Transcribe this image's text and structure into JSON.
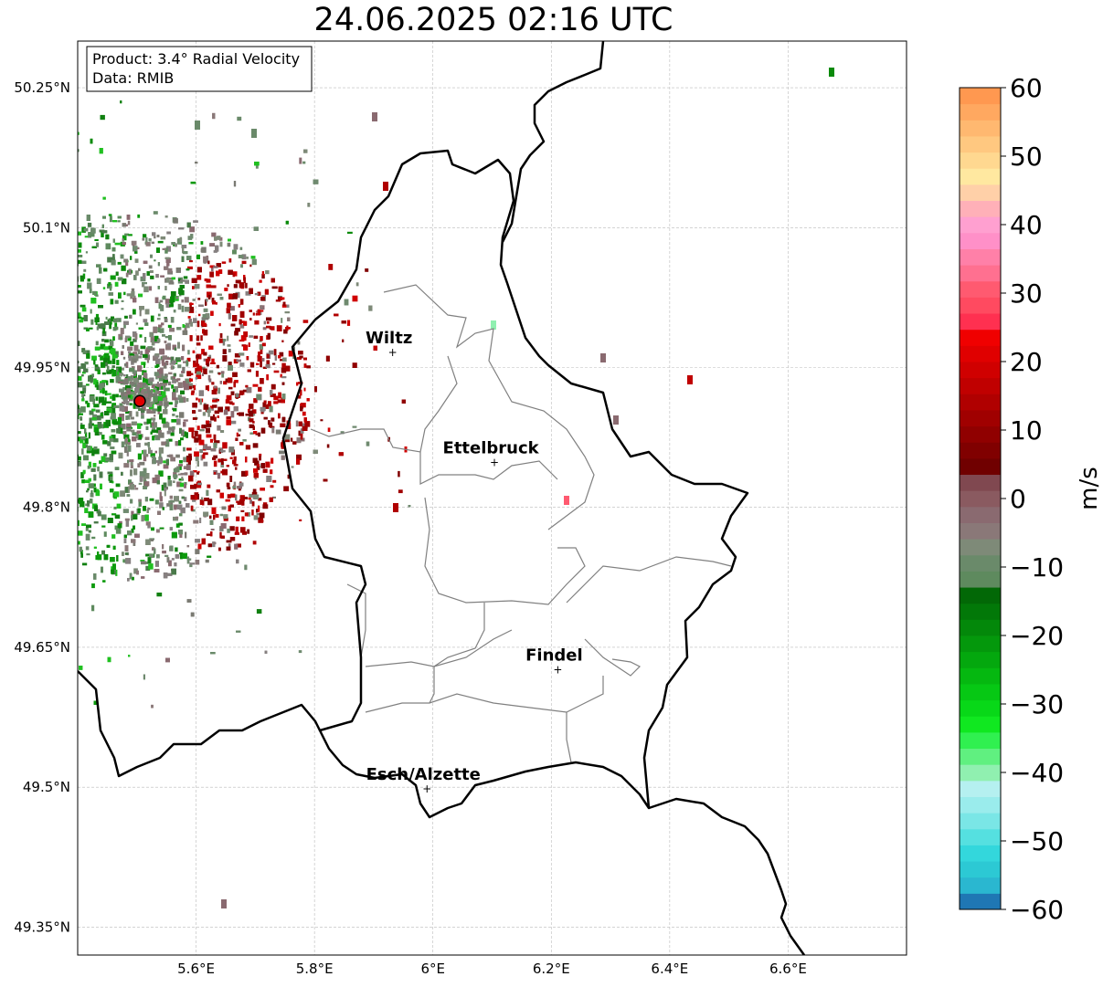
{
  "title": "24.06.2025 02:16 UTC",
  "info_box": {
    "product": "Product: 3.4° Radial Velocity",
    "data": "Data: RMIB"
  },
  "map": {
    "lon_range": [
      5.4,
      6.8
    ],
    "lat_range": [
      49.32,
      50.3
    ],
    "lat_ticks": [
      {
        "value": 50.25,
        "label": "50.25°N"
      },
      {
        "value": 50.1,
        "label": "50.1°N"
      },
      {
        "value": 49.95,
        "label": "49.95°N"
      },
      {
        "value": 49.8,
        "label": "49.8°N"
      },
      {
        "value": 49.65,
        "label": "49.65°N"
      },
      {
        "value": 49.5,
        "label": "49.5°N"
      },
      {
        "value": 49.35,
        "label": "49.35°N"
      }
    ],
    "lon_ticks": [
      {
        "value": 5.6,
        "label": "5.6°E"
      },
      {
        "value": 5.8,
        "label": "5.8°E"
      },
      {
        "value": 6.0,
        "label": "6°E"
      },
      {
        "value": 6.2,
        "label": "6.2°E"
      },
      {
        "value": 6.4,
        "label": "6.4°E"
      },
      {
        "value": 6.6,
        "label": "6.6°E"
      }
    ],
    "radar_site": {
      "lon": 5.505,
      "lat": 49.914
    },
    "cities": [
      {
        "name": "Wiltz",
        "lon": 5.932,
        "lat": 49.966
      },
      {
        "name": "Ettelbruck",
        "lon": 6.104,
        "lat": 49.848
      },
      {
        "name": "Findel",
        "lon": 6.211,
        "lat": 49.626
      },
      {
        "name": "Esch/Alzette",
        "lon": 5.99,
        "lat": 49.498
      }
    ]
  },
  "colorbar": {
    "label": "m/s",
    "min": -60,
    "max": 60,
    "ticks": [
      {
        "value": 60,
        "label": "60"
      },
      {
        "value": 50,
        "label": "50"
      },
      {
        "value": 40,
        "label": "40"
      },
      {
        "value": 30,
        "label": "30"
      },
      {
        "value": 20,
        "label": "20"
      },
      {
        "value": 10,
        "label": "10"
      },
      {
        "value": 0,
        "label": "0"
      },
      {
        "value": -10,
        "label": "−10"
      },
      {
        "value": -20,
        "label": "−20"
      },
      {
        "value": -30,
        "label": "−30"
      },
      {
        "value": -40,
        "label": "−40"
      },
      {
        "value": -50,
        "label": "−50"
      },
      {
        "value": -60,
        "label": "−60"
      }
    ],
    "colors_bottom_to_top": [
      "#1f77b4",
      "#2ab7d0",
      "#2cc9d4",
      "#33d7dc",
      "#55e0e0",
      "#7ae6e6",
      "#9aecec",
      "#b5f0f0",
      "#90f0b0",
      "#60f080",
      "#30f050",
      "#10e820",
      "#08d818",
      "#06c814",
      "#05b810",
      "#04a80e",
      "#04980c",
      "#03880a",
      "#027808",
      "#026806",
      "#5e8a5e",
      "#6a8a6a",
      "#7e8a78",
      "#8a7878",
      "#8a6a70",
      "#8a5a60",
      "#804850",
      "#700000",
      "#800000",
      "#900000",
      "#a00000",
      "#b00000",
      "#c00000",
      "#d00000",
      "#e00000",
      "#f00000",
      "#ff3050",
      "#ff4a60",
      "#ff5a70",
      "#ff7090",
      "#ff80a8",
      "#ff90c8",
      "#ffa0d0",
      "#ffb0b8",
      "#ffd0a8",
      "#ffe8a0",
      "#ffd890",
      "#ffc880",
      "#ffb870",
      "#ffa860",
      "#ff9850"
    ]
  }
}
